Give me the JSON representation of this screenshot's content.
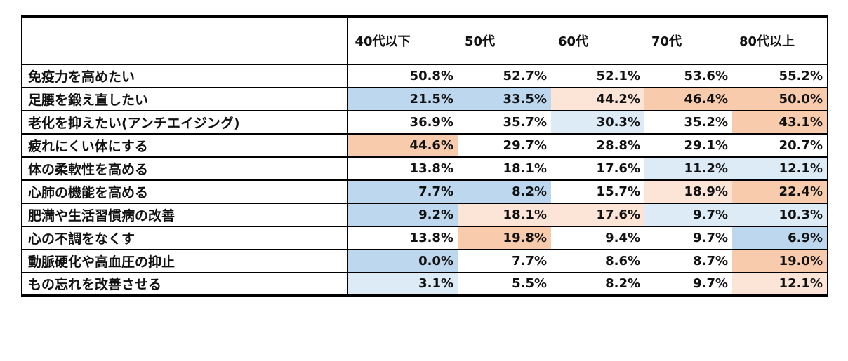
{
  "colors": {
    "blue_strong": "#bdd7ee",
    "blue_light": "#ddebf7",
    "orange_strong": "#f8cbad",
    "orange_light": "#fce4d6",
    "none": "#ffffff"
  },
  "chart_data": {
    "type": "table",
    "columns": [
      "40代以下",
      "50代",
      "60代",
      "70代",
      "80代以上"
    ],
    "rows": [
      {
        "label": "免疫力を高めたい",
        "values": [
          "50.8%",
          "52.7%",
          "52.1%",
          "53.6%",
          "55.2%"
        ],
        "shading": [
          "none",
          "none",
          "none",
          "none",
          "none"
        ]
      },
      {
        "label": "足腰を鍛え直したい",
        "values": [
          "21.5%",
          "33.5%",
          "44.2%",
          "46.4%",
          "50.0%"
        ],
        "shading": [
          "blue_strong",
          "blue_strong",
          "orange_light",
          "orange_strong",
          "orange_strong"
        ]
      },
      {
        "label": "老化を抑えたい(アンチエイジング)",
        "values": [
          "36.9%",
          "35.7%",
          "30.3%",
          "35.2%",
          "43.1%"
        ],
        "shading": [
          "none",
          "none",
          "blue_light",
          "none",
          "orange_strong"
        ]
      },
      {
        "label": "疲れにくい体にする",
        "values": [
          "44.6%",
          "29.7%",
          "28.8%",
          "29.1%",
          "20.7%"
        ],
        "shading": [
          "orange_strong",
          "none",
          "none",
          "none",
          "none"
        ]
      },
      {
        "label": "体の柔軟性を高める",
        "values": [
          "13.8%",
          "18.1%",
          "17.6%",
          "11.2%",
          "12.1%"
        ],
        "shading": [
          "none",
          "none",
          "none",
          "blue_light",
          "blue_light"
        ]
      },
      {
        "label": "心肺の機能を高める",
        "values": [
          "7.7%",
          "8.2%",
          "15.7%",
          "18.9%",
          "22.4%"
        ],
        "shading": [
          "blue_strong",
          "blue_strong",
          "none",
          "orange_light",
          "orange_strong"
        ]
      },
      {
        "label": "肥満や生活習慣病の改善",
        "values": [
          "9.2%",
          "18.1%",
          "17.6%",
          "9.7%",
          "10.3%"
        ],
        "shading": [
          "blue_strong",
          "orange_light",
          "orange_light",
          "blue_light",
          "blue_light"
        ]
      },
      {
        "label": "心の不調をなくす",
        "values": [
          "13.8%",
          "19.8%",
          "9.4%",
          "9.7%",
          "6.9%"
        ],
        "shading": [
          "none",
          "orange_strong",
          "none",
          "none",
          "blue_strong"
        ]
      },
      {
        "label": "動脈硬化や高血圧の抑止",
        "values": [
          "0.0%",
          "7.7%",
          "8.6%",
          "8.7%",
          "19.0%"
        ],
        "shading": [
          "blue_strong",
          "none",
          "none",
          "none",
          "orange_strong"
        ]
      },
      {
        "label": "もの忘れを改善させる",
        "values": [
          "3.1%",
          "5.5%",
          "8.2%",
          "9.7%",
          "12.1%"
        ],
        "shading": [
          "blue_light",
          "none",
          "none",
          "none",
          "orange_light"
        ]
      }
    ]
  }
}
